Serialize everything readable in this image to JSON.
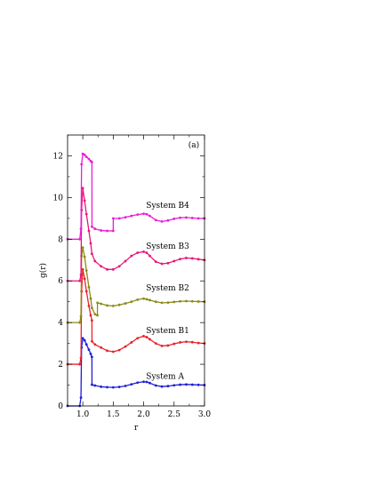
{
  "chart_data": {
    "type": "line",
    "panel_label": "(a)",
    "xlabel": "r",
    "ylabel": "g(r)",
    "xlim": [
      0.75,
      3.0
    ],
    "ylim": [
      0,
      13
    ],
    "xticks": [
      1.0,
      1.5,
      2.0,
      2.5,
      3.0
    ],
    "xtick_labels": [
      "1.0",
      "1.5",
      "2.0",
      "2.5",
      "3.0"
    ],
    "yticks": [
      0,
      2,
      4,
      6,
      8,
      10,
      12
    ],
    "ytick_labels": [
      "0",
      "2",
      "4",
      "6",
      "8",
      "10",
      "12"
    ],
    "grid": false,
    "series": [
      {
        "name": "System A",
        "color": "#1f1fd6",
        "label_at": [
          2.04,
          1.3
        ],
        "x": [
          0.75,
          0.95,
          0.97,
          0.98,
          1.0,
          1.03,
          1.06,
          1.1,
          1.13,
          1.15,
          1.151,
          1.2,
          1.3,
          1.4,
          1.5,
          1.6,
          1.7,
          1.8,
          1.9,
          2.0,
          2.05,
          2.1,
          2.2,
          2.3,
          2.4,
          2.5,
          2.6,
          2.7,
          2.8,
          2.9,
          3.0
        ],
        "y": [
          0.0,
          0.0,
          0.4,
          2.8,
          3.25,
          3.15,
          2.95,
          2.7,
          2.5,
          2.35,
          1.02,
          0.98,
          0.92,
          0.9,
          0.89,
          0.91,
          0.96,
          1.04,
          1.12,
          1.16,
          1.15,
          1.1,
          0.98,
          0.93,
          0.95,
          0.99,
          1.02,
          1.03,
          1.02,
          1.01,
          1.0
        ]
      },
      {
        "name": "System B1",
        "color": "#e8232a",
        "label_at": [
          2.04,
          3.5
        ],
        "x": [
          0.75,
          0.95,
          0.97,
          0.98,
          1.0,
          1.03,
          1.06,
          1.1,
          1.13,
          1.15,
          1.151,
          1.2,
          1.3,
          1.4,
          1.5,
          1.6,
          1.7,
          1.8,
          1.9,
          2.0,
          2.05,
          2.1,
          2.2,
          2.3,
          2.4,
          2.5,
          2.6,
          2.7,
          2.8,
          2.9,
          3.0
        ],
        "y": [
          2.0,
          2.0,
          2.3,
          5.5,
          6.55,
          6.1,
          5.5,
          4.8,
          4.35,
          4.1,
          3.1,
          2.95,
          2.8,
          2.65,
          2.6,
          2.68,
          2.85,
          3.05,
          3.25,
          3.35,
          3.3,
          3.2,
          3.0,
          2.88,
          2.9,
          2.98,
          3.05,
          3.08,
          3.06,
          3.02,
          3.0
        ]
      },
      {
        "name": "System B2",
        "color": "#8c8a1a",
        "label_at": [
          2.04,
          5.55
        ],
        "x": [
          0.75,
          0.95,
          0.97,
          0.98,
          1.0,
          1.03,
          1.06,
          1.1,
          1.13,
          1.15,
          1.2,
          1.24,
          1.241,
          1.3,
          1.4,
          1.5,
          1.6,
          1.7,
          1.8,
          1.9,
          2.0,
          2.05,
          2.1,
          2.2,
          2.3,
          2.4,
          2.5,
          2.6,
          2.7,
          2.8,
          2.9,
          3.0
        ],
        "y": [
          4.0,
          4.0,
          4.3,
          7.2,
          7.6,
          7.15,
          6.5,
          5.7,
          5.15,
          4.7,
          4.4,
          4.35,
          4.95,
          4.9,
          4.82,
          4.8,
          4.85,
          4.92,
          5.0,
          5.1,
          5.15,
          5.12,
          5.08,
          5.0,
          4.95,
          4.96,
          4.99,
          5.02,
          5.03,
          5.02,
          5.01,
          5.0
        ]
      },
      {
        "name": "System B3",
        "color": "#e8157a",
        "label_at": [
          2.04,
          7.55
        ],
        "x": [
          0.75,
          0.95,
          0.97,
          0.98,
          1.0,
          1.03,
          1.06,
          1.1,
          1.13,
          1.15,
          1.2,
          1.3,
          1.4,
          1.5,
          1.6,
          1.7,
          1.8,
          1.9,
          2.0,
          2.05,
          2.1,
          2.2,
          2.3,
          2.4,
          2.5,
          2.6,
          2.7,
          2.8,
          2.9,
          3.0
        ],
        "y": [
          6.0,
          6.0,
          6.3,
          9.4,
          10.45,
          9.85,
          9.2,
          8.4,
          7.8,
          7.3,
          6.95,
          6.7,
          6.55,
          6.55,
          6.7,
          6.95,
          7.2,
          7.35,
          7.4,
          7.35,
          7.2,
          6.92,
          6.82,
          6.85,
          6.95,
          7.05,
          7.1,
          7.08,
          7.04,
          7.0
        ]
      },
      {
        "name": "System B4",
        "color": "#e81ed6",
        "label_at": [
          2.04,
          9.5
        ],
        "x": [
          0.75,
          0.95,
          0.97,
          0.98,
          1.0,
          1.03,
          1.06,
          1.1,
          1.13,
          1.15,
          1.151,
          1.2,
          1.3,
          1.4,
          1.5,
          1.501,
          1.6,
          1.7,
          1.8,
          1.9,
          2.0,
          2.05,
          2.1,
          2.2,
          2.3,
          2.4,
          2.5,
          2.6,
          2.7,
          2.8,
          2.9,
          3.0
        ],
        "y": [
          8.0,
          8.0,
          8.5,
          11.6,
          12.1,
          12.05,
          11.95,
          11.85,
          11.75,
          11.7,
          8.6,
          8.5,
          8.42,
          8.4,
          8.4,
          9.0,
          9.0,
          9.05,
          9.12,
          9.18,
          9.22,
          9.2,
          9.12,
          8.92,
          8.85,
          8.9,
          8.98,
          9.03,
          9.04,
          9.02,
          9.0,
          9.0
        ]
      }
    ]
  }
}
